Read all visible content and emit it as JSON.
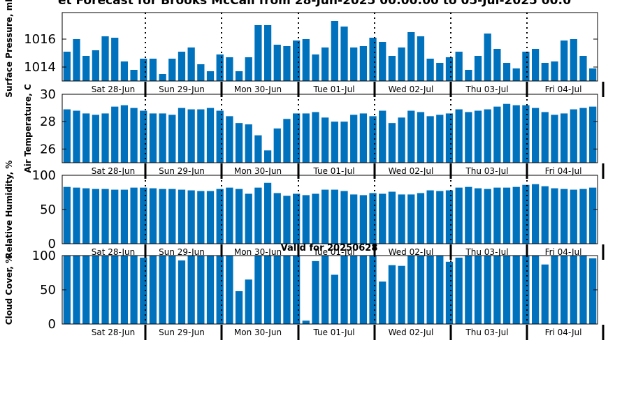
{
  "title": "et Forecast for Brooks McCall from 28-Jun-2025 00:00:00 to 05-Jul-2025 00:0",
  "valid_text": "Valid for 20250628",
  "colors": {
    "bar": "#0072BD",
    "axis": "#000000",
    "divider": "#000000"
  },
  "chart_data": [
    {
      "type": "bar",
      "ylabel": "Surface Pressure, mb",
      "ylim": [
        1013.0,
        1017.9
      ],
      "yticks": [
        "1014",
        "1016"
      ],
      "ytick_values": [
        1014,
        1016
      ],
      "day_labels": [
        "Sat 28-Jun",
        "Sun 29-Jun",
        "Mon 30-Jun",
        "Tue 01-Jul",
        "Wed 02-Jul",
        "Thu 03-Jul",
        "Fri 04-Jul"
      ],
      "values": [
        1015.1,
        1016.0,
        1014.8,
        1015.2,
        1016.2,
        1016.1,
        1014.4,
        1013.8,
        1014.6,
        1014.6,
        1013.5,
        1014.6,
        1015.1,
        1015.4,
        1014.2,
        1013.7,
        1014.9,
        1014.7,
        1013.7,
        1014.7,
        1017.0,
        1017.0,
        1015.6,
        1015.5,
        1015.9,
        1016.0,
        1014.9,
        1015.4,
        1017.3,
        1016.9,
        1015.4,
        1015.5,
        1016.1,
        1015.8,
        1014.8,
        1015.4,
        1016.5,
        1016.2,
        1014.6,
        1014.3,
        1014.7,
        1015.1,
        1013.8,
        1014.8,
        1016.4,
        1015.3,
        1014.3,
        1013.9,
        1015.1,
        1015.3,
        1014.3,
        1014.4,
        1015.9,
        1016.0,
        1014.8,
        1013.9
      ]
    },
    {
      "type": "bar",
      "ylabel": "Air Temperature, C",
      "ylim": [
        25.0,
        30.0
      ],
      "yticks": [
        "26",
        "28",
        "30"
      ],
      "ytick_values": [
        26,
        28,
        30
      ],
      "day_labels": [
        "Sat 28-Jun",
        "Sun 29-Jun",
        "Mon 30-Jun",
        "Tue 01-Jul",
        "Wed 02-Jul",
        "Thu 03-Jul",
        "Fri 04-Jul"
      ],
      "values": [
        28.9,
        28.8,
        28.6,
        28.5,
        28.6,
        29.1,
        29.2,
        29.0,
        28.8,
        28.6,
        28.6,
        28.5,
        29.0,
        28.9,
        28.9,
        29.0,
        28.8,
        28.4,
        27.9,
        27.8,
        27.0,
        25.9,
        27.5,
        28.2,
        28.6,
        28.6,
        28.7,
        28.3,
        28.0,
        28.0,
        28.5,
        28.6,
        28.4,
        28.8,
        27.9,
        28.3,
        28.8,
        28.7,
        28.4,
        28.5,
        28.6,
        28.9,
        28.7,
        28.8,
        28.9,
        29.1,
        29.3,
        29.2,
        29.2,
        29.0,
        28.7,
        28.5,
        28.6,
        28.9,
        29.0,
        29.1
      ]
    },
    {
      "type": "bar",
      "ylabel": "Relative Humidity, %",
      "ylim": [
        0,
        100
      ],
      "yticks": [
        "0",
        "50",
        "100"
      ],
      "ytick_values": [
        0,
        50,
        100
      ],
      "day_labels": [
        "Sat 28-Jun",
        "Sun 29-Jun",
        "Mon 30-Jun",
        "Tue 01-Jul",
        "Wed 02-Jul",
        "Thu 03-Jul",
        "Fri 04-Jul"
      ],
      "values": [
        83,
        82,
        81,
        80,
        80,
        79,
        79,
        82,
        82,
        81,
        80,
        80,
        79,
        78,
        77,
        77,
        80,
        82,
        80,
        73,
        82,
        89,
        74,
        70,
        73,
        71,
        73,
        79,
        79,
        77,
        72,
        71,
        74,
        73,
        76,
        72,
        72,
        74,
        78,
        77,
        78,
        82,
        83,
        81,
        80,
        82,
        82,
        83,
        86,
        87,
        84,
        81,
        80,
        79,
        80,
        82
      ]
    },
    {
      "type": "bar",
      "ylabel": "Cloud Cover, %",
      "ylim": [
        0,
        100
      ],
      "yticks": [
        "0",
        "50",
        "100"
      ],
      "ytick_values": [
        0,
        50,
        100
      ],
      "day_labels": [
        "Sat 28-Jun",
        "Sun 29-Jun",
        "Mon 30-Jun",
        "Tue 01-Jul",
        "Wed 02-Jul",
        "Thu 03-Jul",
        "Fri 04-Jul"
      ],
      "values": [
        100,
        100,
        100,
        100,
        100,
        100,
        100,
        100,
        97,
        100,
        100,
        100,
        93,
        100,
        100,
        100,
        100,
        100,
        48,
        65,
        100,
        100,
        100,
        100,
        100,
        5,
        92,
        100,
        72,
        100,
        100,
        100,
        100,
        62,
        86,
        85,
        100,
        100,
        100,
        100,
        91,
        97,
        100,
        100,
        100,
        100,
        100,
        100,
        100,
        100,
        87,
        100,
        100,
        100,
        100,
        96
      ]
    }
  ]
}
